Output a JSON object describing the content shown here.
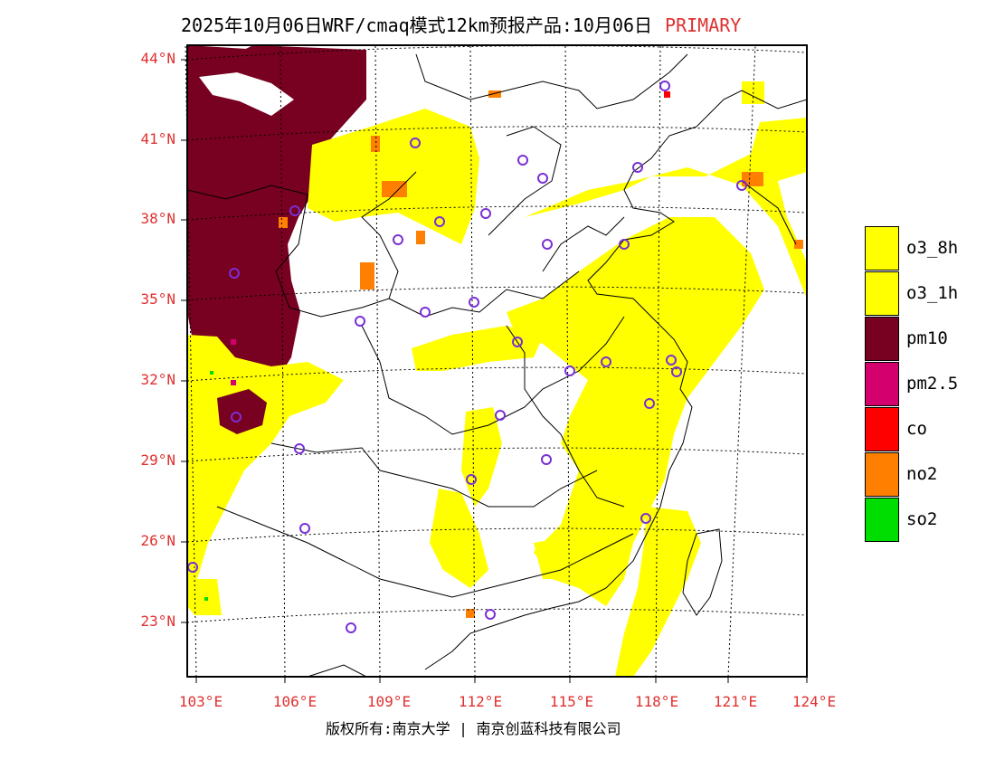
{
  "title": {
    "text": "2025年10月06日WRF/cmaq模式12km预报产品:10月06日",
    "tag": "PRIMARY",
    "tag_color": "#e03030"
  },
  "map": {
    "lat_labels": [
      "44°N",
      "41°N",
      "38°N",
      "35°N",
      "32°N",
      "29°N",
      "26°N",
      "23°N"
    ],
    "lon_labels": [
      "103°E",
      "106°E",
      "109°E",
      "112°E",
      "115°E",
      "118°E",
      "121°E",
      "124°E"
    ],
    "label_color": "#e03030",
    "station_marker_color": "#7a2fd6",
    "station_count": 32
  },
  "legend": [
    {
      "label": "o3_8h",
      "color": "#ffff00"
    },
    {
      "label": "o3_1h",
      "color": "#ffff00"
    },
    {
      "label": "pm10",
      "color": "#780021"
    },
    {
      "label": "pm2.5",
      "color": "#d4006e"
    },
    {
      "label": "co",
      "color": "#ff0000"
    },
    {
      "label": "no2",
      "color": "#ff7f00"
    },
    {
      "label": "so2",
      "color": "#00dd00"
    }
  ],
  "copyright": "版权所有:南京大学 | 南京创蓝科技有限公司"
}
